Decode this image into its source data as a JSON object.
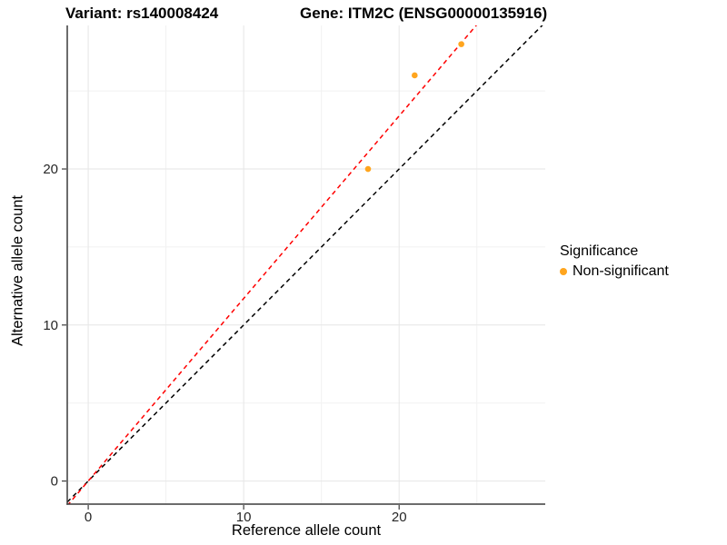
{
  "figure": {
    "title_left": "Variant: rs140008424",
    "title_right": "Gene: ITM2C (ENSG00000135916)"
  },
  "chart_data": {
    "type": "scatter",
    "xlabel": "Reference allele count",
    "ylabel": "Alternative allele count",
    "xlim": [
      -1.35,
      29.4
    ],
    "ylim": [
      -1.48,
      29.2
    ],
    "xticks": [
      0,
      10,
      20
    ],
    "yticks": [
      0,
      10,
      20
    ],
    "xticks_minor": [
      5,
      15,
      25
    ],
    "yticks_minor": [
      5,
      15,
      25
    ],
    "grid": "major+minor",
    "legend_position": "right",
    "points": [
      {
        "x": 18,
        "y": 20,
        "series": "Non-significant"
      },
      {
        "x": 21,
        "y": 26,
        "series": "Non-significant"
      },
      {
        "x": 24,
        "y": 28,
        "series": "Non-significant"
      }
    ],
    "lines": [
      {
        "name": "identity-line",
        "slope": 1.0,
        "intercept": 0,
        "color": "#000000",
        "style": "dashed"
      },
      {
        "name": "fit-line",
        "slope": 1.17,
        "intercept": 0,
        "color": "#FF0000",
        "style": "dashed"
      }
    ],
    "colors": {
      "point": "#FFA51E",
      "grid_major": "#E6E6E6",
      "grid_minor": "#F1F1F1",
      "axis": "#3c3c3c",
      "tick_label": "#262626"
    },
    "legend": {
      "title": "Significance",
      "items": [
        {
          "label": "Non-significant",
          "color": "#FFA51E"
        }
      ]
    }
  }
}
